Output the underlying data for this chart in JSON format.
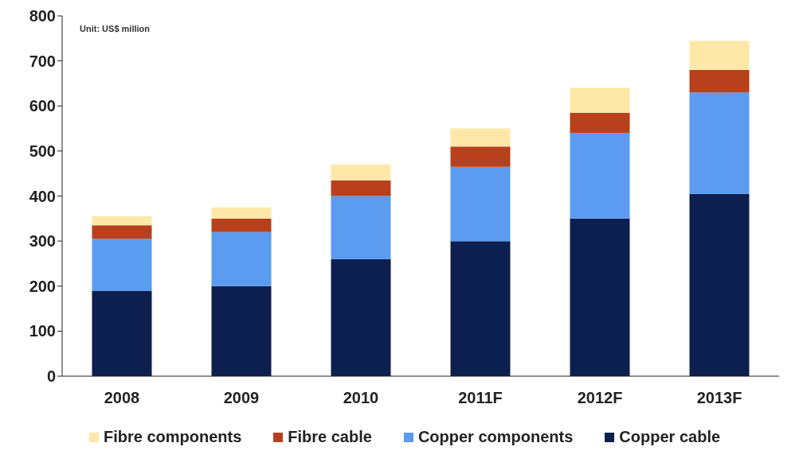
{
  "chart_data": {
    "type": "bar",
    "stacked": true,
    "categories": [
      "2008",
      "2009",
      "2010",
      "2011F",
      "2012F",
      "2013F"
    ],
    "series": [
      {
        "name": "Copper cable",
        "color": "#0d1f4f",
        "values": [
          190,
          200,
          260,
          300,
          350,
          405
        ]
      },
      {
        "name": "Copper components",
        "color": "#5b9bf0",
        "values": [
          115,
          120,
          140,
          165,
          190,
          225
        ]
      },
      {
        "name": "Fibre cable",
        "color": "#b8401c",
        "values": [
          30,
          30,
          35,
          45,
          45,
          50
        ]
      },
      {
        "name": "Fibre components",
        "color": "#fde8a8",
        "values": [
          20,
          25,
          35,
          40,
          55,
          65
        ]
      }
    ],
    "ylim": [
      0,
      800
    ],
    "yticks": [
      0,
      100,
      200,
      300,
      400,
      500,
      600,
      700,
      800
    ],
    "grid": false,
    "legend": "bottom",
    "annotations": [
      "Unit: US$ million"
    ]
  }
}
